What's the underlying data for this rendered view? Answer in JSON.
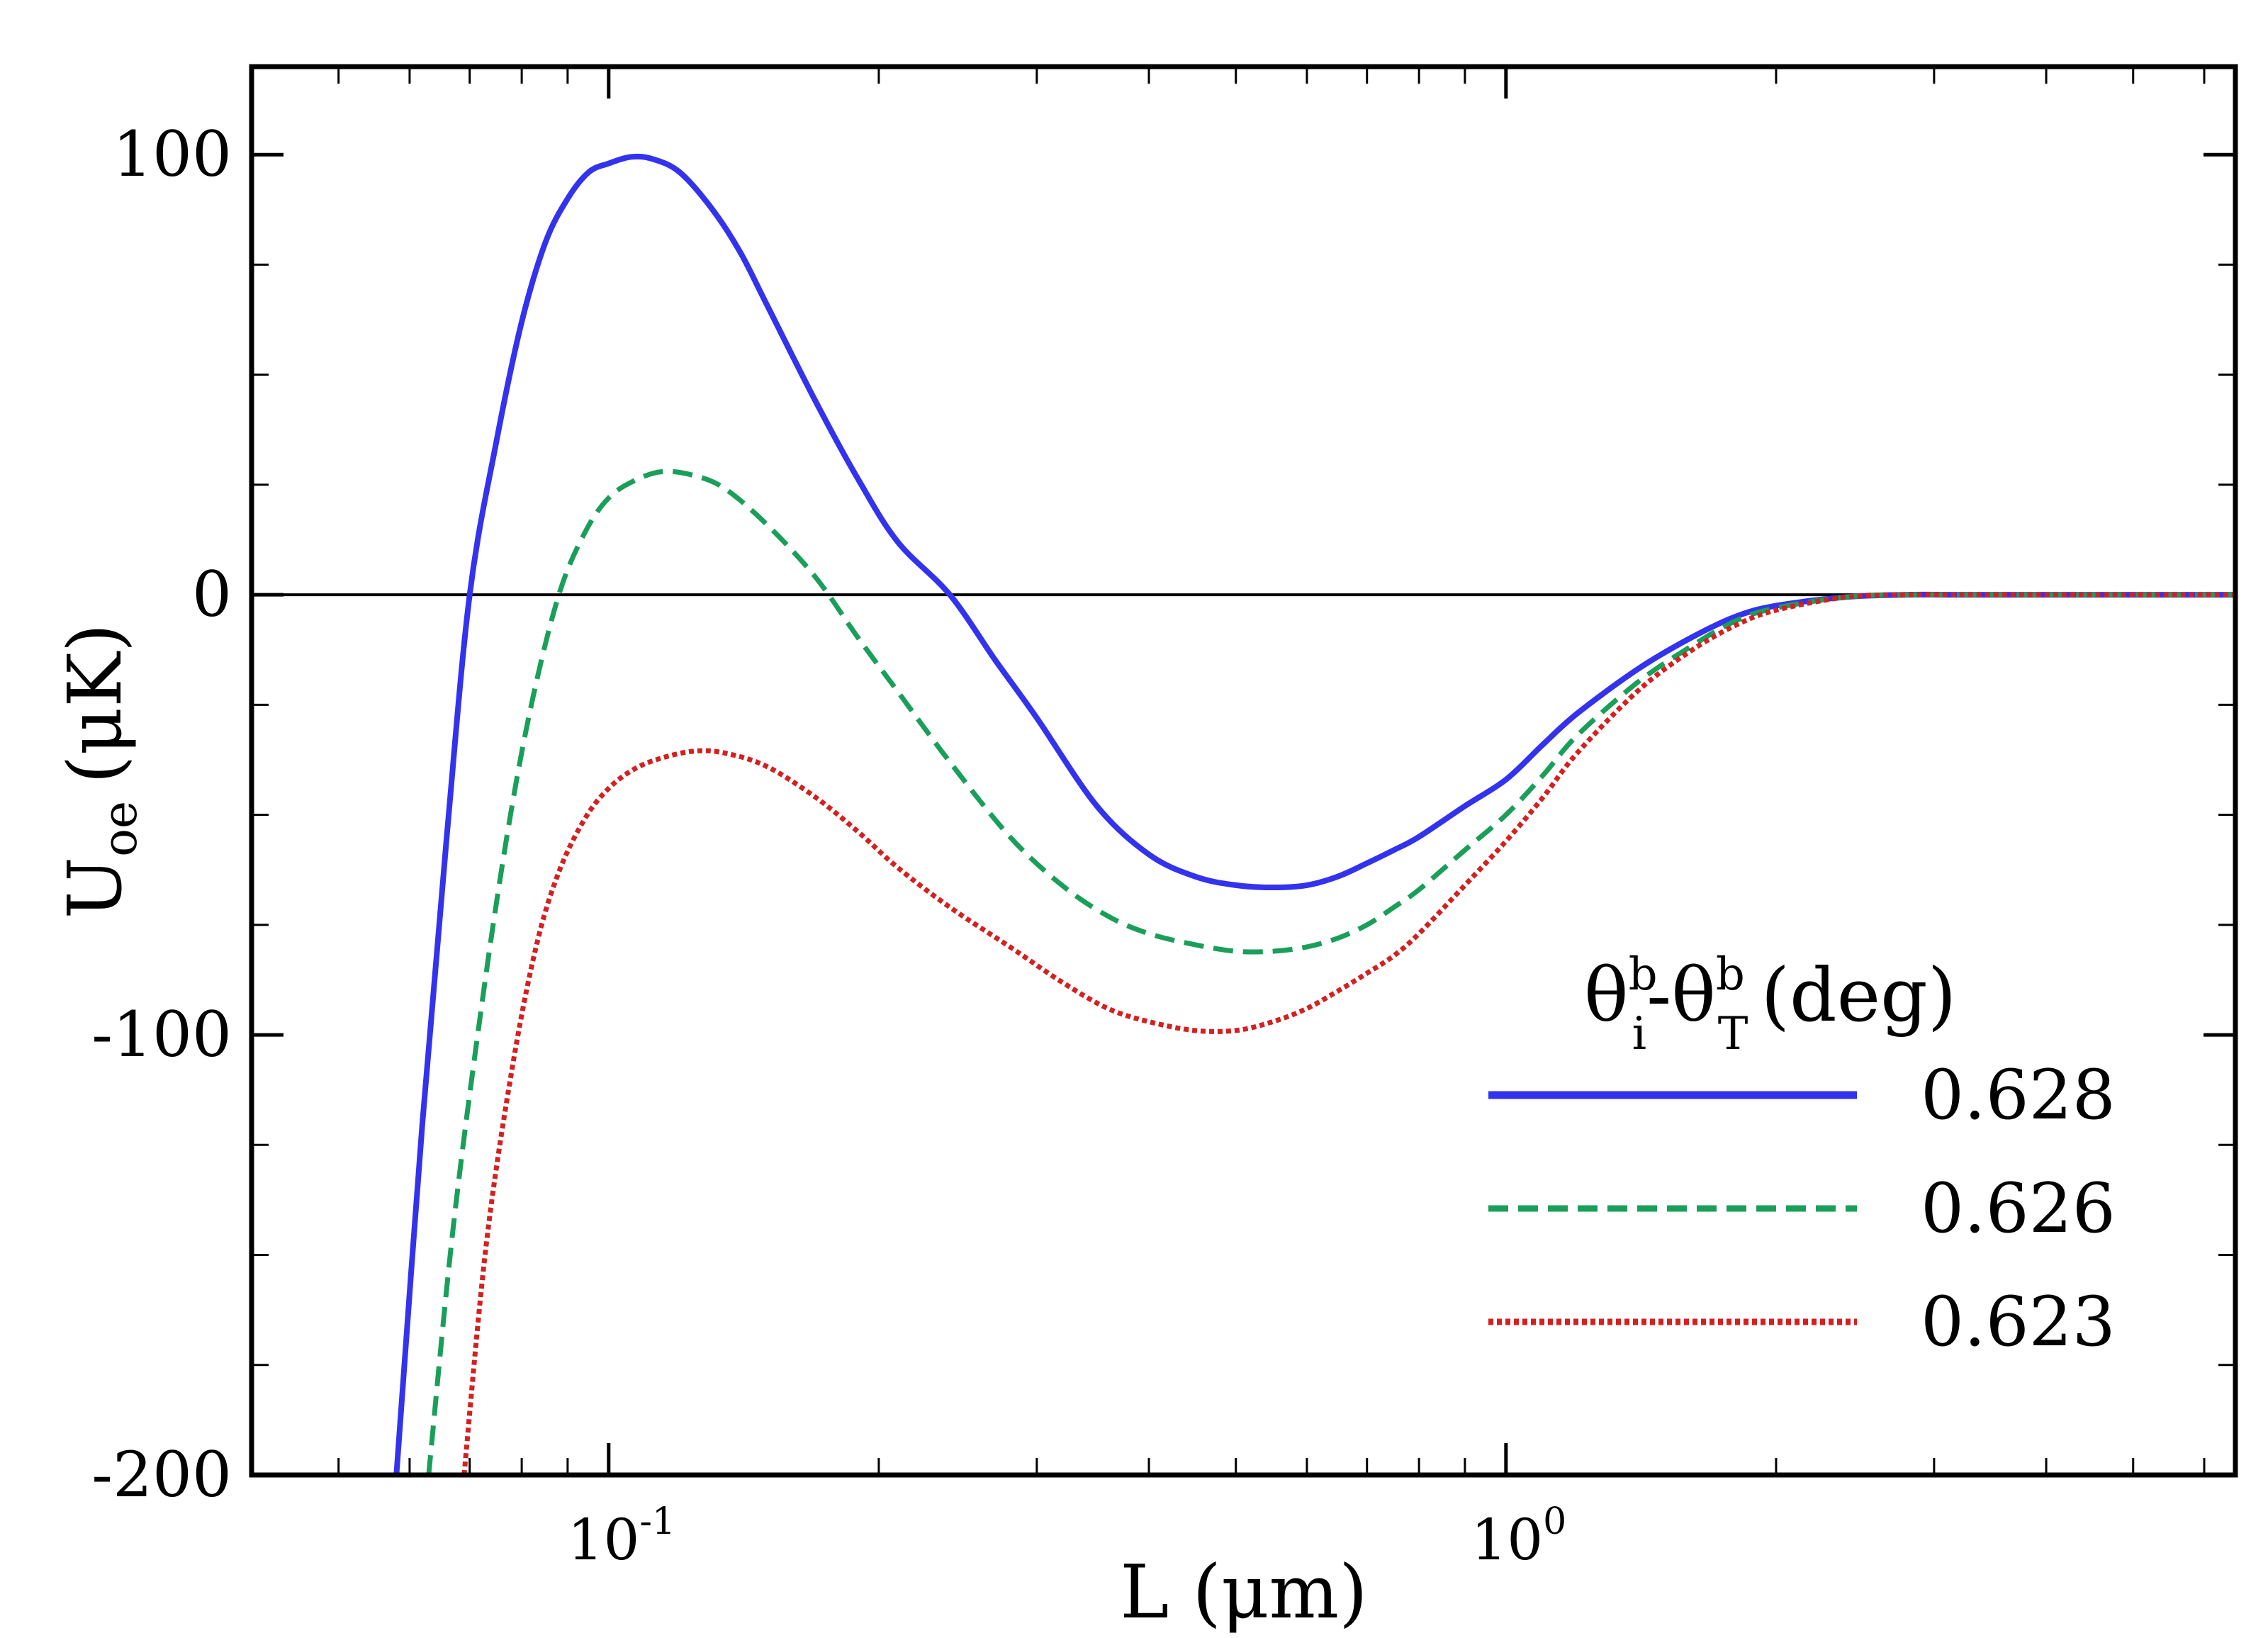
{
  "chart_data": {
    "type": "line",
    "title": "",
    "xlabel": "L (μm)",
    "ylabel_main": "U",
    "ylabel_sub": "oe",
    "ylabel_unit": "(μK)",
    "x_scale": "log",
    "xlim": [
      0.04,
      6.5
    ],
    "ylim": [
      -200,
      120
    ],
    "x_ticks": [
      {
        "value": 0.1,
        "base": "10",
        "exp": "-1"
      },
      {
        "value": 1,
        "base": "10",
        "exp": "0"
      }
    ],
    "y_ticks": [
      {
        "value": 100,
        "label": "100"
      },
      {
        "value": 0,
        "label": "0"
      },
      {
        "value": -100,
        "label": "-100"
      },
      {
        "value": -200,
        "label": "-200"
      }
    ],
    "zero_line": 0,
    "legend": {
      "title_theta": "θ",
      "title_sub_i": "i",
      "title_sub_T": "T",
      "title_sup": "b",
      "title_dash": "-",
      "title_unit": "(deg)",
      "placement": "lower-right"
    },
    "series": [
      {
        "name": "0.628",
        "color": "#3333ee",
        "style": "solid",
        "x": [
          0.058,
          0.062,
          0.066,
          0.07,
          0.075,
          0.08,
          0.085,
          0.09,
          0.095,
          0.1,
          0.106,
          0.112,
          0.12,
          0.13,
          0.14,
          0.15,
          0.17,
          0.19,
          0.21,
          0.24,
          0.27,
          0.3,
          0.35,
          0.4,
          0.45,
          0.5,
          0.55,
          0.6,
          0.65,
          0.7,
          0.75,
          0.8,
          0.9,
          1.0,
          1.1,
          1.2,
          1.4,
          1.6,
          1.8,
          2.0,
          2.4,
          2.8,
          3.2,
          4.0,
          5.0,
          6.5
        ],
        "y": [
          -200,
          -120,
          -55,
          0,
          35,
          62,
          80,
          90,
          96,
          98,
          99.5,
          99,
          96,
          88,
          78,
          66,
          44,
          26,
          12,
          0,
          -15,
          -28,
          -48,
          -59,
          -64,
          -66,
          -66.5,
          -66,
          -64,
          -61,
          -58,
          -55,
          -48,
          -42,
          -34,
          -27,
          -17,
          -10,
          -5,
          -2.5,
          -0.5,
          0,
          0,
          0,
          0,
          0
        ]
      },
      {
        "name": "0.626",
        "color": "#1a9f5a",
        "style": "dashed",
        "x": [
          0.063,
          0.067,
          0.072,
          0.077,
          0.082,
          0.088,
          0.094,
          0.1,
          0.107,
          0.115,
          0.125,
          0.135,
          0.15,
          0.17,
          0.19,
          0.21,
          0.24,
          0.28,
          0.32,
          0.36,
          0.4,
          0.45,
          0.5,
          0.55,
          0.6,
          0.65,
          0.7,
          0.75,
          0.8,
          0.9,
          1.0,
          1.1,
          1.2,
          1.4,
          1.6,
          1.8,
          2.0,
          2.4,
          2.8,
          3.2,
          4.0,
          5.0,
          6.5
        ],
        "y": [
          -200,
          -145,
          -95,
          -55,
          -25,
          0,
          14,
          22,
          26,
          28,
          27,
          24,
          16,
          4,
          -10,
          -22,
          -38,
          -55,
          -66,
          -73,
          -77,
          -79.5,
          -81,
          -81,
          -80,
          -78,
          -75,
          -71,
          -67,
          -58,
          -50,
          -41,
          -32,
          -20,
          -12,
          -6,
          -3,
          -0.5,
          0,
          0,
          0,
          0,
          0
        ]
      },
      {
        "name": "0.623",
        "color": "#d42020",
        "style": "dotted",
        "x": [
          0.069,
          0.073,
          0.078,
          0.083,
          0.088,
          0.094,
          0.1,
          0.107,
          0.115,
          0.125,
          0.135,
          0.15,
          0.17,
          0.19,
          0.21,
          0.24,
          0.28,
          0.32,
          0.36,
          0.4,
          0.45,
          0.5,
          0.55,
          0.6,
          0.65,
          0.7,
          0.75,
          0.8,
          0.9,
          1.0,
          1.1,
          1.2,
          1.4,
          1.6,
          1.8,
          2.0,
          2.4,
          2.8,
          3.2,
          4.0,
          5.0,
          6.5
        ],
        "y": [
          -200,
          -148,
          -108,
          -80,
          -63,
          -51,
          -44,
          -39.5,
          -37,
          -35.5,
          -36,
          -39,
          -46,
          -54,
          -62,
          -71,
          -80,
          -88,
          -94,
          -97,
          -99,
          -99,
          -97,
          -94,
          -90,
          -86,
          -82,
          -77,
          -66,
          -56,
          -46,
          -36,
          -22,
          -13,
          -7,
          -3.5,
          -0.5,
          0,
          0,
          0,
          0,
          0
        ]
      }
    ]
  }
}
